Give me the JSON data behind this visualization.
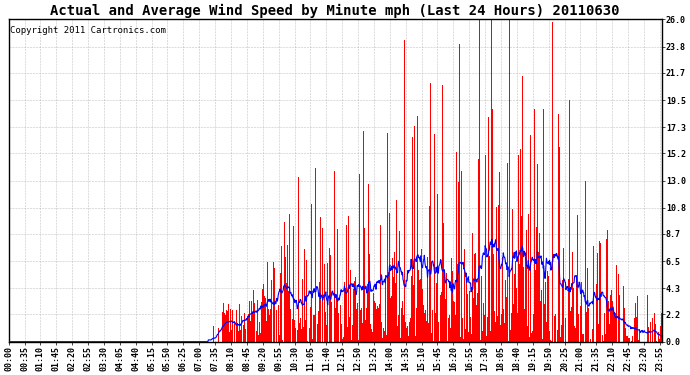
{
  "title": "Actual and Average Wind Speed by Minute mph (Last 24 Hours) 20110630",
  "copyright": "Copyright 2011 Cartronics.com",
  "yticks": [
    0.0,
    2.2,
    4.3,
    6.5,
    8.7,
    10.8,
    13.0,
    15.2,
    17.3,
    19.5,
    21.7,
    23.8,
    26.0
  ],
  "ylim": [
    0.0,
    26.0
  ],
  "bar_color": "#FF0000",
  "line_color": "#0000FF",
  "bg_color": "#FFFFFF",
  "grid_color": "#AAAAAA",
  "title_fontsize": 10,
  "copyright_fontsize": 6.5,
  "tick_fontsize": 6,
  "minutes_per_day": 1440,
  "x_tick_interval": 35,
  "xtick_labels": [
    "00:00",
    "00:35",
    "01:10",
    "01:45",
    "02:20",
    "02:55",
    "03:30",
    "04:05",
    "04:40",
    "05:15",
    "05:50",
    "06:25",
    "07:00",
    "07:35",
    "08:10",
    "08:45",
    "09:20",
    "09:55",
    "10:30",
    "11:05",
    "11:40",
    "12:15",
    "12:50",
    "13:25",
    "14:00",
    "14:35",
    "15:10",
    "15:45",
    "16:20",
    "16:55",
    "17:30",
    "18:05",
    "18:40",
    "19:15",
    "19:50",
    "20:25",
    "21:00",
    "21:35",
    "22:10",
    "22:45",
    "23:20",
    "23:55"
  ]
}
